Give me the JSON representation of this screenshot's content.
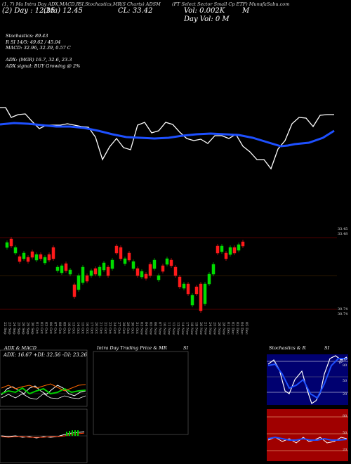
{
  "top_header": {
    "items": [
      "(1, 7) Ma Intra Day ADX,MACD,R",
      "SI,Stochastics,MR",
      "(S Charts) ADSM",
      "(FT Select Sector Small Cp ETF) MunafaSabu.com"
    ],
    "left_line2": "(2) Day : 12.25",
    "left_line2b": "(Ma) 12.45",
    "close_label": "CL: 33.42",
    "volume_label": "Vol: 0.002K",
    "vol_unit": "M",
    "day_vol": "Day Vol: 0   M"
  },
  "indicators": {
    "lines": [
      "Stochastics: 89.43",
      "R      SI 14/5: 49.62 / 45.04",
      "MACD: 32.96, 32.39, 0.57 C",
      "",
      "ADX:                          (MGR) 16.7, 32.6, 23.3",
      "ADX  signal:                          BUY Growing @ 2%"
    ]
  },
  "price_levels": {
    "top": [
      "33.45",
      "33.48"
    ],
    "bottom": [
      "30.74",
      "30.74"
    ]
  },
  "x_dates": [
    "22 Sep",
    "23 Sep",
    "24 Sep",
    "25 Sep",
    "26 Sep",
    "29 Sep",
    "30 Sep",
    "01 Oct",
    "02 Oct",
    "03 Oct",
    "06 Oct",
    "07 Oct",
    "08 Oct",
    "09 Oct",
    "10 Oct",
    "13 Oct",
    "14 Oct",
    "15 Oct",
    "16 Oct",
    "17 Oct",
    "20 Oct",
    "21 Oct",
    "22 Oct",
    "23 Oct",
    "24 Oct",
    "27 Oct",
    "28 Oct",
    "29 Oct",
    "30 Oct",
    "31 Oct",
    "03 Nov",
    "04 Nov",
    "05 Nov",
    "06 Nov",
    "07 Nov",
    "10 Nov",
    "11 Nov",
    "12 Nov",
    "13 Nov",
    "14 Nov",
    "17 Nov",
    "18 Nov",
    "19 Nov",
    "20 Nov",
    "21 Nov",
    "24 Nov",
    "25 Nov",
    "26 Nov",
    "28 Nov",
    "01 Dec",
    "02 Dec",
    "03 Dec",
    "04 Dec",
    "05 Dec"
  ],
  "panels": {
    "adx_title": "ADX  & MACD",
    "adx_readout": "ADX: 16.67  +DI: 32.56  -DI: 23.26",
    "intraday_title": "Intra  Day Trading Price  & MR",
    "intraday_si": "SI",
    "stoch_title": "Stochastics & R",
    "stoch_si": "SI",
    "stoch_levels": [
      "80",
      "50",
      "20"
    ],
    "stoch_top_value": "89.43",
    "rsi_levels": [
      "80",
      "50",
      "20"
    ]
  },
  "colors": {
    "accent_blue": "#1e50ff",
    "up": "#00dd00",
    "down": "#ff1a1a",
    "rsi_bg": "#a00000",
    "stoch_bg": "#000070"
  }
}
